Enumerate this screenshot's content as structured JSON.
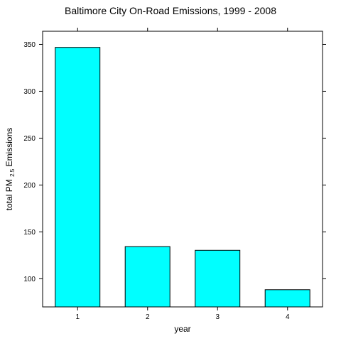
{
  "chart_data": {
    "type": "bar",
    "title": "Baltimore City On-Road Emissions, 1999 - 2008",
    "xlabel": "year",
    "ylabel": {
      "prefix": "total PM",
      "subscript": "2.5",
      "suffix": " Emissions"
    },
    "categories": [
      "1",
      "2",
      "3",
      "4"
    ],
    "values": [
      346.8,
      134.3,
      130.4,
      88.3
    ],
    "ylim": [
      70,
      364
    ],
    "yticks": [
      100,
      150,
      200,
      250,
      300,
      350
    ],
    "ytick_labels": [
      "100",
      "150",
      "200",
      "250",
      "300",
      "350"
    ],
    "grid": false,
    "legend": "none",
    "bar_color": "#00ffff",
    "edge_color": "#000000"
  }
}
